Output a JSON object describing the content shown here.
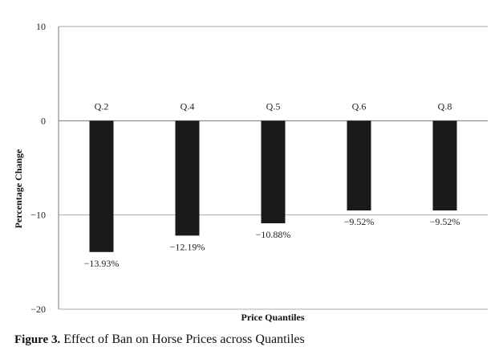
{
  "caption": {
    "prefix": "Figure 3.",
    "text": "Effect of Ban on Horse Prices across Quantiles"
  },
  "chart_data": {
    "type": "bar",
    "title": "",
    "xlabel": "Price Quantiles",
    "ylabel": "Percentage Change",
    "ylim": [
      -20,
      10
    ],
    "yticks": [
      10,
      0,
      -10,
      -20
    ],
    "ytick_labels": [
      "10",
      "0",
      "−10",
      "−20"
    ],
    "grid": "horizontal",
    "legend": "none",
    "bar_color": "#1a1a1a",
    "categories": [
      "Q.2",
      "Q.4",
      "Q.5",
      "Q.6",
      "Q.8"
    ],
    "values": [
      -13.93,
      -12.19,
      -10.88,
      -9.52,
      -9.52
    ],
    "value_labels": [
      "−13.93%",
      "−12.19%",
      "−10.88%",
      "−9.52%",
      "−9.52%"
    ]
  }
}
